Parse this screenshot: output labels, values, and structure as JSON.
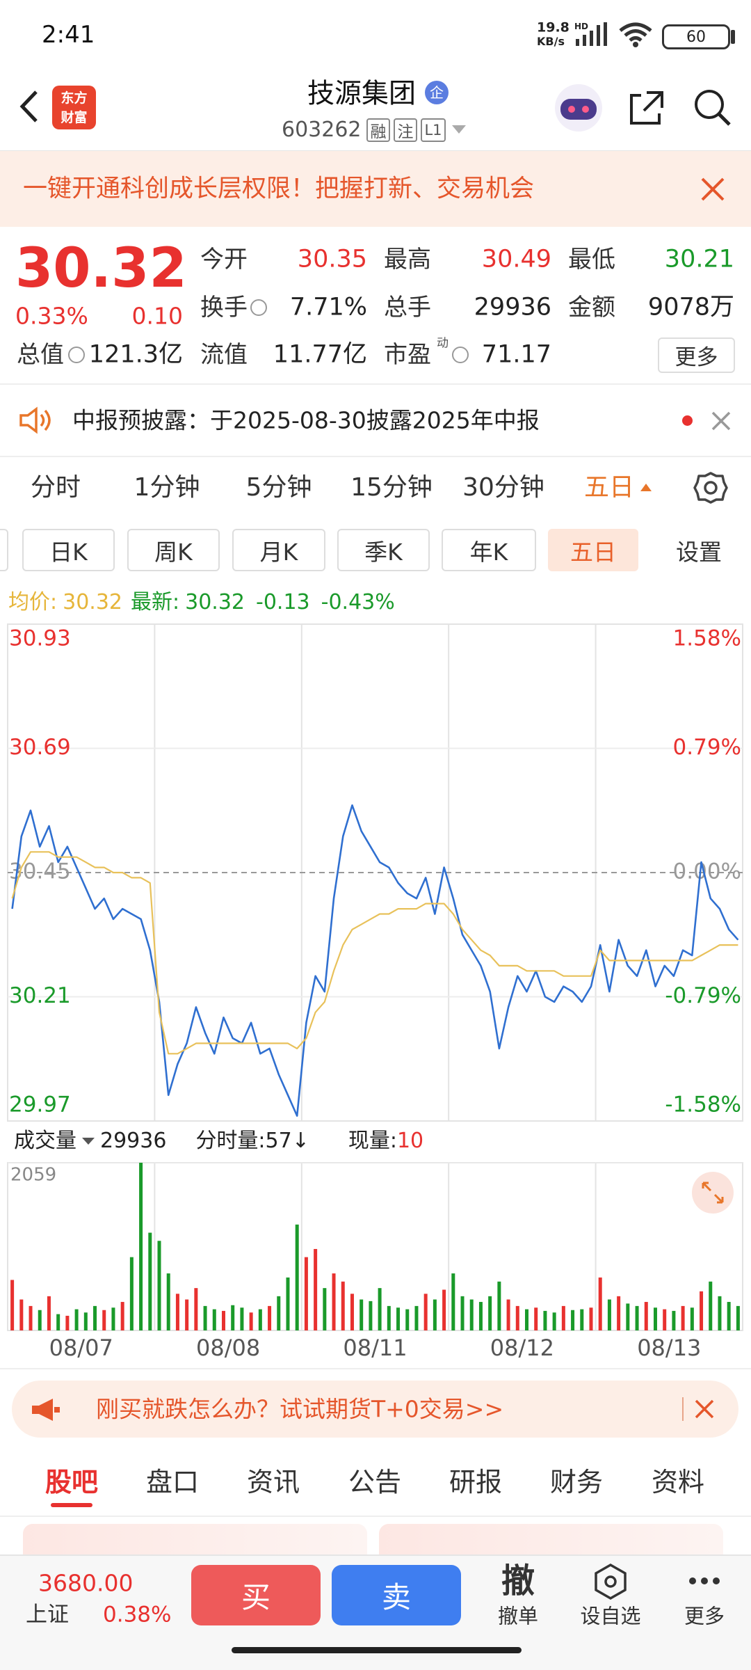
{
  "status_bar": {
    "time": "2:41",
    "net_speed": "19.8",
    "net_unit": "KB/s",
    "net_type": "HD",
    "battery": "60"
  },
  "header": {
    "logo": [
      "东方",
      "财富"
    ],
    "title": "技源集团",
    "badge": "企",
    "code": "603262",
    "tags": [
      "融",
      "注",
      "L1"
    ]
  },
  "banner": {
    "text": "一键开通科创成长层权限！把握打新、交易机会"
  },
  "quote": {
    "price": "30.32",
    "change_pct": "0.33%",
    "change": "0.10",
    "stats": [
      {
        "label": "今开",
        "value": "30.35"
      },
      {
        "label": "最高",
        "value": "30.49"
      },
      {
        "label": "最低",
        "value": "30.21"
      },
      {
        "label": "换手",
        "value": "7.71%"
      },
      {
        "label": "总手",
        "value": "29936"
      },
      {
        "label": "金额",
        "value": "9078万"
      },
      {
        "label": "总值",
        "value": "121.3亿"
      },
      {
        "label": "流值",
        "value": "11.77亿"
      },
      {
        "label": "市盈",
        "value": "71.17",
        "sup": "动"
      }
    ],
    "more": "更多"
  },
  "notice": {
    "text": "中报预披露：于2025-08-30披露2025年中报"
  },
  "period_tabs": {
    "items": [
      "分时",
      "1分钟",
      "5分钟",
      "15分钟",
      "30分钟",
      "五日"
    ],
    "active": 5
  },
  "kline_tabs": {
    "items": [
      "日K",
      "周K",
      "月K",
      "季K",
      "年K",
      "五日",
      "设置"
    ],
    "active": 5
  },
  "legend": {
    "avg_label": "均价:",
    "avg_value": "30.32",
    "latest_label": "最新:",
    "latest_value": "30.32",
    "change": "-0.13",
    "change_pct": "-0.43%"
  },
  "chart_data": [
    {
      "type": "line",
      "ylim": [
        29.97,
        30.93
      ],
      "yticks": [
        30.93,
        30.69,
        30.45,
        30.21,
        29.97
      ],
      "y2lim": [
        -1.58,
        1.58
      ],
      "y2ticks": [
        {
          "value": 1.58,
          "label": "1.58%"
        },
        {
          "value": 0.79,
          "label": "0.79%"
        },
        {
          "value": 0,
          "label": "0.00%"
        },
        {
          "value": -0.79,
          "label": "-0.79%"
        },
        {
          "value": -1.58,
          "label": "-1.58%"
        }
      ],
      "up_color": "#e8312f",
      "down_color": "#1a9a2a",
      "grid": true,
      "series": [
        {
          "color": "#2f6fd0",
          "values": [
            30.38,
            30.52,
            30.57,
            30.5,
            30.54,
            30.47,
            30.5,
            30.46,
            30.42,
            30.38,
            30.4,
            30.36,
            30.38,
            30.37,
            30.36,
            30.3,
            30.2,
            30.02,
            30.08,
            30.12,
            30.19,
            30.14,
            30.1,
            30.17,
            30.13,
            30.12,
            30.16,
            30.1,
            30.11,
            30.06,
            30.02,
            29.98,
            30.16,
            30.25,
            30.22,
            30.4,
            30.52,
            30.58,
            30.53,
            30.5,
            30.47,
            30.46,
            30.43,
            30.41,
            30.4,
            30.44,
            30.37,
            30.46,
            30.4,
            30.33,
            30.3,
            30.27,
            30.22,
            30.11,
            30.19,
            30.25,
            30.22,
            30.26,
            30.21,
            30.2,
            30.23,
            30.22,
            30.2,
            30.23,
            30.31,
            30.22,
            30.32,
            30.27,
            30.25,
            30.3,
            30.23,
            30.27,
            30.25,
            30.3,
            30.29,
            30.47,
            30.4,
            30.38,
            30.34,
            30.32
          ]
        },
        {
          "color": "#e8c15a",
          "values": [
            30.4,
            30.46,
            30.49,
            30.49,
            30.49,
            30.48,
            30.48,
            30.48,
            30.47,
            30.46,
            30.46,
            30.45,
            30.45,
            30.44,
            30.44,
            30.43,
            30.18,
            30.1,
            30.1,
            30.11,
            30.12,
            30.12,
            30.12,
            30.12,
            30.12,
            30.12,
            30.12,
            30.12,
            30.12,
            30.12,
            30.12,
            30.11,
            30.13,
            30.18,
            30.2,
            30.26,
            30.31,
            30.34,
            30.35,
            30.36,
            30.37,
            30.37,
            30.38,
            30.38,
            30.38,
            30.39,
            30.39,
            30.39,
            30.37,
            30.34,
            30.32,
            30.3,
            30.29,
            30.27,
            30.27,
            30.27,
            30.26,
            30.26,
            30.26,
            30.26,
            30.25,
            30.25,
            30.25,
            30.25,
            30.3,
            30.28,
            30.28,
            30.28,
            30.28,
            30.28,
            30.28,
            30.28,
            30.28,
            30.28,
            30.28,
            30.29,
            30.3,
            30.31,
            30.31,
            30.31
          ]
        }
      ]
    },
    {
      "type": "bar",
      "ylim": [
        0,
        2059
      ],
      "yticks": [
        2059
      ],
      "up_color": "#e8312f",
      "down_color": "#1a9a2a",
      "days": [
        "08/07",
        "08/08",
        "08/11",
        "08/12",
        "08/13"
      ],
      "values": [
        620,
        380,
        300,
        250,
        420,
        200,
        180,
        260,
        220,
        300,
        250,
        280,
        350,
        900,
        2059,
        1200,
        1100,
        700,
        450,
        380,
        520,
        300,
        260,
        240,
        310,
        280,
        220,
        260,
        300,
        420,
        650,
        1300,
        900,
        1000,
        520,
        700,
        600,
        450,
        380,
        360,
        520,
        300,
        280,
        260,
        300,
        450,
        380,
        500,
        700,
        420,
        380,
        350,
        420,
        600,
        380,
        300,
        260,
        280,
        240,
        220,
        300,
        250,
        260,
        280,
        650,
        380,
        420,
        330,
        300,
        350,
        280,
        260,
        240,
        300,
        280,
        480,
        600,
        420,
        350,
        300
      ]
    }
  ],
  "volume_info": {
    "label": "成交量",
    "total": "29936",
    "tick_volume": "分时量:57↓",
    "current_label": "现量:",
    "current_value": "10"
  },
  "ad": {
    "text": "刚买就跌怎么办？试试期货T+0交易>>"
  },
  "content_tabs": {
    "items": [
      "股吧",
      "盘口",
      "资讯",
      "公告",
      "研报",
      "财务",
      "资料"
    ],
    "active": 0
  },
  "bottom_bar": {
    "index_value": "3680.00",
    "index_name": "上证",
    "index_change": "0.38%",
    "buy": "买",
    "sell": "卖",
    "cancel_icon": "撤",
    "cancel": "撤单",
    "watch": "设自选",
    "more": "更多"
  }
}
